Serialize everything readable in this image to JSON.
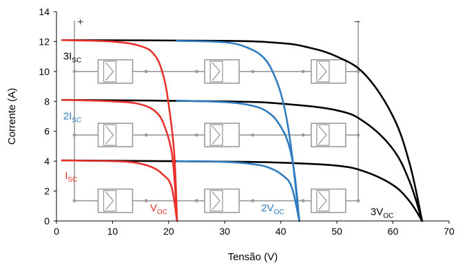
{
  "chart_data": {
    "type": "line",
    "xlabel": "Tensão (V)",
    "ylabel": "Corrente (A)",
    "xlim": [
      0,
      70
    ],
    "ylim": [
      0,
      14
    ],
    "x_ticks": [
      "0",
      "10",
      "20",
      "30",
      "40",
      "50",
      "60",
      "70"
    ],
    "y_ticks": [
      "0",
      "2",
      "4",
      "6",
      "8",
      "10",
      "12",
      "14"
    ],
    "grid": false,
    "legend": "none",
    "series": [
      {
        "color": "#000000",
        "points": [
          [
            1,
            4.05
          ],
          [
            30,
            3.97
          ],
          [
            40,
            3.9
          ],
          [
            50,
            3.7
          ],
          [
            55,
            3.3
          ],
          [
            60,
            2.4
          ],
          [
            63,
            1.3
          ],
          [
            65.2,
            0
          ]
        ]
      },
      {
        "color": "#000000",
        "points": [
          [
            1,
            8.1
          ],
          [
            30,
            8.0
          ],
          [
            40,
            7.85
          ],
          [
            50,
            7.4
          ],
          [
            55,
            6.6
          ],
          [
            60,
            4.8
          ],
          [
            63,
            2.6
          ],
          [
            65.2,
            0
          ]
        ]
      },
      {
        "color": "#000000",
        "points": [
          [
            1,
            12.1
          ],
          [
            30,
            12.05
          ],
          [
            40,
            11.9
          ],
          [
            45,
            11.6
          ],
          [
            50,
            11.0
          ],
          [
            55,
            9.8
          ],
          [
            60,
            7.0
          ],
          [
            63,
            3.8
          ],
          [
            65.2,
            0
          ]
        ]
      },
      {
        "color": "#e8312a",
        "points": [
          [
            1,
            4.05
          ],
          [
            10,
            4.0
          ],
          [
            14,
            3.9
          ],
          [
            17,
            3.6
          ],
          [
            19,
            3.1
          ],
          [
            20.5,
            2.3
          ],
          [
            21.5,
            0
          ]
        ]
      },
      {
        "color": "#e8312a",
        "points": [
          [
            1,
            8.1
          ],
          [
            10,
            8.0
          ],
          [
            15,
            7.8
          ],
          [
            18,
            7.2
          ],
          [
            19.5,
            6.1
          ],
          [
            20.5,
            4.7
          ],
          [
            21,
            3.0
          ],
          [
            21.5,
            0
          ]
        ]
      },
      {
        "color": "#e8312a",
        "points": [
          [
            1,
            12.1
          ],
          [
            10,
            12.0
          ],
          [
            15,
            11.7
          ],
          [
            17.5,
            11.1
          ],
          [
            19,
            9.8
          ],
          [
            20,
            7.8
          ],
          [
            21,
            4.5
          ],
          [
            21.5,
            0
          ]
        ]
      },
      {
        "color": "#2e7bc0",
        "points": [
          [
            21.5,
            4.0
          ],
          [
            30,
            3.95
          ],
          [
            35,
            3.8
          ],
          [
            38,
            3.55
          ],
          [
            40.5,
            3.0
          ],
          [
            42,
            2.2
          ],
          [
            43.3,
            0
          ]
        ]
      },
      {
        "color": "#2e7bc0",
        "points": [
          [
            21.5,
            8.05
          ],
          [
            30,
            7.95
          ],
          [
            35,
            7.7
          ],
          [
            38,
            7.2
          ],
          [
            40,
            6.3
          ],
          [
            41.5,
            5.0
          ],
          [
            42.5,
            3.0
          ],
          [
            43.3,
            0
          ]
        ]
      },
      {
        "color": "#2e7bc0",
        "points": [
          [
            21.5,
            12.05
          ],
          [
            30,
            11.95
          ],
          [
            34,
            11.6
          ],
          [
            37,
            10.9
          ],
          [
            39,
            9.6
          ],
          [
            40.5,
            7.8
          ],
          [
            41.8,
            5.0
          ],
          [
            43.3,
            0
          ]
        ]
      }
    ],
    "annotations": [
      {
        "id": "isc3",
        "main": "3I",
        "sub": "SC",
        "color": "#000000",
        "x": 1.2,
        "y": 10.8
      },
      {
        "id": "isc2",
        "main": "2I",
        "sub": "SC",
        "color": "#2e7bc0",
        "x": 1.2,
        "y": 6.8
      },
      {
        "id": "isc1",
        "main": "I",
        "sub": "SC",
        "color": "#e8312a",
        "x": 1.5,
        "y": 2.8
      },
      {
        "id": "voc1",
        "main": "V",
        "sub": "OC",
        "color": "#e8312a",
        "x": 16.7,
        "y": 0.65
      },
      {
        "id": "voc2",
        "main": "2V",
        "sub": "OC",
        "color": "#2e7bc0",
        "x": 36.5,
        "y": 0.65
      },
      {
        "id": "voc3",
        "main": "3V",
        "sub": "OC",
        "color": "#000000",
        "x": 56,
        "y": 0.4
      }
    ],
    "circuit": {
      "plus_label": "+",
      "minus_label": "−",
      "left_rail_x": 3.2,
      "right_rail_x": 53.8,
      "rail_top_y": 13.4,
      "rail_bottom_y": 1.3,
      "row_y": [
        10.0,
        5.75,
        1.35
      ],
      "module_centers_x": [
        10.5,
        29.5,
        48.5
      ],
      "dot_x": [
        16,
        25,
        35,
        44
      ],
      "color": "#9a9a9a"
    }
  }
}
